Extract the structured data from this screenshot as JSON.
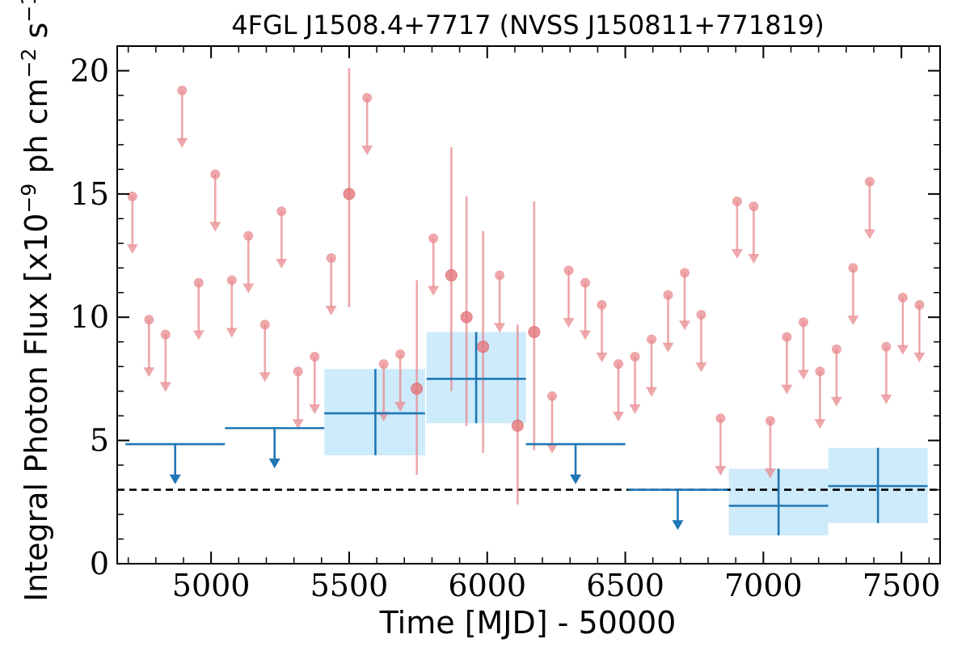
{
  "chart_data": {
    "type": "scatter",
    "title": "4FGL J1508.4+7717 (NVSS J150811+771819)",
    "xlabel": "Time [MJD] - 50000",
    "ylabel_parts": [
      "Integral Photon Flux [x10",
      "−9",
      " ph cm",
      "−2",
      " s",
      "−1",
      "]"
    ],
    "xlim": [
      4660,
      7640
    ],
    "ylim": [
      0,
      21
    ],
    "x_ticks": [
      5000,
      5500,
      6000,
      6500,
      7000,
      7500
    ],
    "y_ticks": [
      0,
      5,
      10,
      15,
      20
    ],
    "x_tick_labels": [
      "5000",
      "5500",
      "6000",
      "6500",
      "7000",
      "7500"
    ],
    "y_tick_labels": [
      "0",
      "5",
      "10",
      "15",
      "20"
    ],
    "x_minor_step": 100,
    "y_minor_step": 1,
    "reference_line": {
      "y": 3.0,
      "style": "dashed",
      "color": "#000000"
    },
    "colors": {
      "short_timescale": "#e88a8d",
      "long_timescale": "#1f77b4",
      "band_fill": "#cdebfb"
    },
    "series": [
      {
        "kind": "upper_limits",
        "color": "#e88a8d",
        "points": [
          {
            "x": 4715,
            "y": 14.9
          },
          {
            "x": 4775,
            "y": 9.9
          },
          {
            "x": 4835,
            "y": 9.3
          },
          {
            "x": 4895,
            "y": 19.2
          },
          {
            "x": 4955,
            "y": 11.4
          },
          {
            "x": 5015,
            "y": 15.8
          },
          {
            "x": 5075,
            "y": 11.5
          },
          {
            "x": 5135,
            "y": 13.3
          },
          {
            "x": 5195,
            "y": 9.7
          },
          {
            "x": 5255,
            "y": 14.3
          },
          {
            "x": 5315,
            "y": 7.8
          },
          {
            "x": 5375,
            "y": 8.4
          },
          {
            "x": 5435,
            "y": 12.4
          },
          {
            "x": 5565,
            "y": 18.9
          },
          {
            "x": 5625,
            "y": 8.1
          },
          {
            "x": 5685,
            "y": 8.5
          },
          {
            "x": 5805,
            "y": 13.2
          },
          {
            "x": 6045,
            "y": 11.7
          },
          {
            "x": 6235,
            "y": 6.8
          },
          {
            "x": 6295,
            "y": 11.9
          },
          {
            "x": 6355,
            "y": 11.4
          },
          {
            "x": 6415,
            "y": 10.5
          },
          {
            "x": 6475,
            "y": 8.1
          },
          {
            "x": 6535,
            "y": 8.4
          },
          {
            "x": 6595,
            "y": 9.1
          },
          {
            "x": 6655,
            "y": 10.9
          },
          {
            "x": 6715,
            "y": 11.8
          },
          {
            "x": 6775,
            "y": 10.1
          },
          {
            "x": 6845,
            "y": 5.9
          },
          {
            "x": 6905,
            "y": 14.7
          },
          {
            "x": 6965,
            "y": 14.5
          },
          {
            "x": 7025,
            "y": 5.8
          },
          {
            "x": 7085,
            "y": 9.2
          },
          {
            "x": 7145,
            "y": 9.8
          },
          {
            "x": 7205,
            "y": 7.8
          },
          {
            "x": 7265,
            "y": 8.7
          },
          {
            "x": 7325,
            "y": 12.0
          },
          {
            "x": 7385,
            "y": 15.5
          },
          {
            "x": 7445,
            "y": 8.8
          },
          {
            "x": 7505,
            "y": 10.8
          },
          {
            "x": 7565,
            "y": 10.5
          }
        ]
      },
      {
        "kind": "detections",
        "color": "#e88a8d",
        "points": [
          {
            "x": 5500,
            "y": 15.0,
            "y_low": 10.4,
            "y_high": 20.1
          },
          {
            "x": 5745,
            "y": 7.1,
            "y_low": 3.6,
            "y_high": 11.5
          },
          {
            "x": 5870,
            "y": 11.7,
            "y_low": 7.0,
            "y_high": 16.9
          },
          {
            "x": 5925,
            "y": 10.0,
            "y_low": 5.6,
            "y_high": 14.9
          },
          {
            "x": 5985,
            "y": 8.8,
            "y_low": 4.5,
            "y_high": 13.5
          },
          {
            "x": 6110,
            "y": 5.6,
            "y_low": 2.4,
            "y_high": 9.7
          },
          {
            "x": 6170,
            "y": 9.4,
            "y_low": 4.6,
            "y_high": 14.7
          }
        ]
      },
      {
        "kind": "binned_upper_limits",
        "color": "#1f77b4",
        "points": [
          {
            "x": 4870,
            "x_low": 4690,
            "x_high": 5050,
            "y": 4.85
          },
          {
            "x": 5230,
            "x_low": 5050,
            "x_high": 5410,
            "y": 5.5
          },
          {
            "x": 6320,
            "x_low": 6140,
            "x_high": 6500,
            "y": 4.85
          },
          {
            "x": 6690,
            "x_low": 6510,
            "x_high": 6870,
            "y": 3.0
          }
        ]
      },
      {
        "kind": "binned_detections",
        "color": "#1f77b4",
        "points": [
          {
            "x": 5595,
            "x_low": 5410,
            "x_high": 5775,
            "y": 6.1,
            "y_low": 4.4,
            "y_high": 7.9
          },
          {
            "x": 5960,
            "x_low": 5780,
            "x_high": 6140,
            "y": 7.5,
            "y_low": 5.7,
            "y_high": 9.4
          },
          {
            "x": 7055,
            "x_low": 6875,
            "x_high": 7235,
            "y": 2.35,
            "y_low": 1.15,
            "y_high": 3.85
          },
          {
            "x": 7415,
            "x_low": 7235,
            "x_high": 7595,
            "y": 3.15,
            "y_low": 1.65,
            "y_high": 4.7
          }
        ]
      }
    ]
  }
}
